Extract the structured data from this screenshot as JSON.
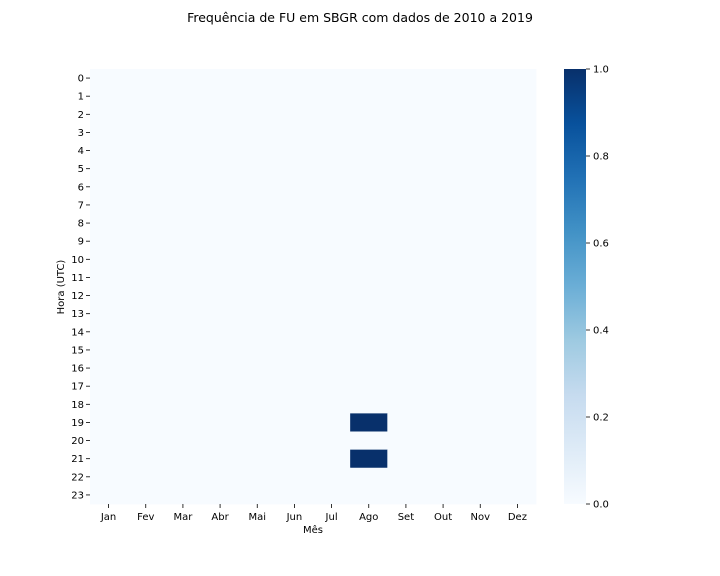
{
  "chart_data": {
    "type": "heatmap",
    "title": "Frequência de FU em SBGR com dados de 2010 a 2019",
    "xlabel": "Mês",
    "ylabel": "Hora (UTC)",
    "x_categories": [
      "Jan",
      "Fev",
      "Mar",
      "Abr",
      "Mai",
      "Jun",
      "Jul",
      "Ago",
      "Set",
      "Out",
      "Nov",
      "Dez"
    ],
    "y_categories": [
      "0",
      "1",
      "2",
      "3",
      "4",
      "5",
      "6",
      "7",
      "8",
      "9",
      "10",
      "11",
      "12",
      "13",
      "14",
      "15",
      "16",
      "17",
      "18",
      "19",
      "20",
      "21",
      "22",
      "23"
    ],
    "values": [
      [
        0,
        0,
        0,
        0,
        0,
        0,
        0,
        0,
        0,
        0,
        0,
        0
      ],
      [
        0,
        0,
        0,
        0,
        0,
        0,
        0,
        0,
        0,
        0,
        0,
        0
      ],
      [
        0,
        0,
        0,
        0,
        0,
        0,
        0,
        0,
        0,
        0,
        0,
        0
      ],
      [
        0,
        0,
        0,
        0,
        0,
        0,
        0,
        0,
        0,
        0,
        0,
        0
      ],
      [
        0,
        0,
        0,
        0,
        0,
        0,
        0,
        0,
        0,
        0,
        0,
        0
      ],
      [
        0,
        0,
        0,
        0,
        0,
        0,
        0,
        0,
        0,
        0,
        0,
        0
      ],
      [
        0,
        0,
        0,
        0,
        0,
        0,
        0,
        0,
        0,
        0,
        0,
        0
      ],
      [
        0,
        0,
        0,
        0,
        0,
        0,
        0,
        0,
        0,
        0,
        0,
        0
      ],
      [
        0,
        0,
        0,
        0,
        0,
        0,
        0,
        0,
        0,
        0,
        0,
        0
      ],
      [
        0,
        0,
        0,
        0,
        0,
        0,
        0,
        0,
        0,
        0,
        0,
        0
      ],
      [
        0,
        0,
        0,
        0,
        0,
        0,
        0,
        0,
        0,
        0,
        0,
        0
      ],
      [
        0,
        0,
        0,
        0,
        0,
        0,
        0,
        0,
        0,
        0,
        0,
        0
      ],
      [
        0,
        0,
        0,
        0,
        0,
        0,
        0,
        0,
        0,
        0,
        0,
        0
      ],
      [
        0,
        0,
        0,
        0,
        0,
        0,
        0,
        0,
        0,
        0,
        0,
        0
      ],
      [
        0,
        0,
        0,
        0,
        0,
        0,
        0,
        0,
        0,
        0,
        0,
        0
      ],
      [
        0,
        0,
        0,
        0,
        0,
        0,
        0,
        0,
        0,
        0,
        0,
        0
      ],
      [
        0,
        0,
        0,
        0,
        0,
        0,
        0,
        0,
        0,
        0,
        0,
        0
      ],
      [
        0,
        0,
        0,
        0,
        0,
        0,
        0,
        0,
        0,
        0,
        0,
        0
      ],
      [
        0,
        0,
        0,
        0,
        0,
        0,
        0,
        0,
        0,
        0,
        0,
        0
      ],
      [
        0,
        0,
        0,
        0,
        0,
        0,
        0,
        1,
        0,
        0,
        0,
        0
      ],
      [
        0,
        0,
        0,
        0,
        0,
        0,
        0,
        0,
        0,
        0,
        0,
        0
      ],
      [
        0,
        0,
        0,
        0,
        0,
        0,
        0,
        1,
        0,
        0,
        0,
        0
      ],
      [
        0,
        0,
        0,
        0,
        0,
        0,
        0,
        0,
        0,
        0,
        0,
        0
      ],
      [
        0,
        0,
        0,
        0,
        0,
        0,
        0,
        0,
        0,
        0,
        0,
        0
      ]
    ],
    "colorbar": {
      "range": [
        0,
        1
      ],
      "ticks": [
        "0.0",
        "0.2",
        "0.4",
        "0.6",
        "0.8",
        "1.0"
      ],
      "colormap": "Blues",
      "low_color": "#f7fbff",
      "high_color": "#08306b"
    },
    "grid": false
  }
}
